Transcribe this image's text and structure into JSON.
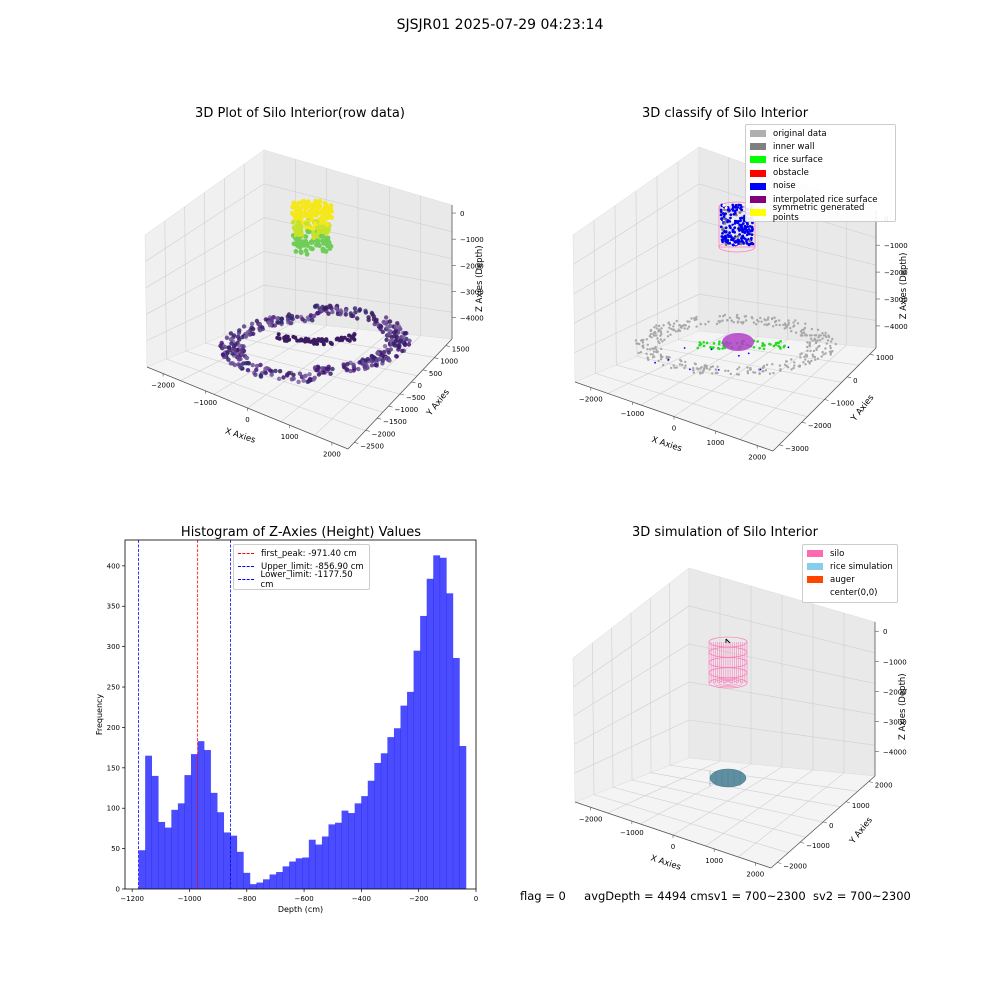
{
  "title": "SJSJR01 2025-07-29 04:23:14",
  "status": {
    "flag": "flag = 0",
    "avg_depth": "avgDepth = 4494 cm",
    "sv1": "sv1 = 700~2300",
    "sv2": "sv2 = 700~2300"
  },
  "plot_raw": {
    "title": "3D Plot of Silo Interior(row data)",
    "x_label": "X Axies",
    "y_label": "Y Axies",
    "z_label": "Z Axies (Depth)",
    "x_ticks": [
      "−2000",
      "−1000",
      "0",
      "1000",
      "2000"
    ],
    "y_ticks": [
      "1500",
      "1000",
      "500",
      "0",
      "−500",
      "−1000",
      "−1500",
      "−2000",
      "−2500"
    ],
    "z_ticks": [
      "0",
      "−1000",
      "−2000",
      "−3000",
      "−4000"
    ]
  },
  "plot_classify": {
    "title": "3D classify of Silo Interior",
    "x_label": "X Axies",
    "y_label": "Y Axies",
    "z_label": "Z Axies (Depth)",
    "x_ticks": [
      "−2000",
      "−1000",
      "0",
      "1000",
      "2000"
    ],
    "y_ticks": [
      "1000",
      "0",
      "−1000",
      "−2000",
      "−3000"
    ],
    "z_ticks": [
      "0",
      "−1000",
      "−2000",
      "−3000",
      "−4000"
    ],
    "legend": [
      {
        "label": "original data",
        "color": "#b0b0b0"
      },
      {
        "label": "inner wall",
        "color": "#808080"
      },
      {
        "label": "rice surface",
        "color": "#00ff00"
      },
      {
        "label": "obstacle",
        "color": "#ff0000"
      },
      {
        "label": "noise",
        "color": "#0000ff"
      },
      {
        "label": "interpolated rice surface",
        "color": "#800080"
      },
      {
        "label": "symmetric generated points",
        "color": "#ffff00"
      }
    ]
  },
  "plot_sim": {
    "title": "3D simulation of Silo Interior",
    "x_label": "X Axies",
    "y_label": "Y Axies",
    "z_label": "Z Axies (Depth)",
    "x_ticks": [
      "−2000",
      "−1000",
      "0",
      "1000",
      "2000"
    ],
    "y_ticks": [
      "2000",
      "1000",
      "0",
      "−1000",
      "−2000"
    ],
    "z_ticks": [
      "0",
      "−1000",
      "−2000",
      "−3000",
      "−4000"
    ],
    "legend": [
      {
        "label": "silo",
        "color": "#ff69b4"
      },
      {
        "label": "rice simulation",
        "color": "#87ceeb"
      },
      {
        "label": "auger",
        "color": "#ff4500"
      },
      {
        "label": "center(0,0)",
        "color": "#ffffff"
      }
    ]
  },
  "chart_data": {
    "type": "bar",
    "title": "Histogram of Z-Axies (Height) Values",
    "xlabel": "Depth (cm)",
    "ylabel": "Frequency",
    "xlim": [
      -1225,
      0
    ],
    "ylim": [
      0,
      432
    ],
    "x_ticks": [
      "−1200",
      "−1000",
      "−800",
      "−600",
      "−400",
      "−200",
      "0"
    ],
    "y_ticks": [
      "0",
      "50",
      "100",
      "150",
      "200",
      "250",
      "300",
      "350",
      "400"
    ],
    "bar_color": "#0000ff",
    "bin_start": -1177.5,
    "bin_width": 22.85,
    "values": [
      48,
      165,
      140,
      83,
      76,
      98,
      106,
      141,
      167,
      183,
      172,
      119,
      95,
      70,
      66,
      46,
      20,
      6,
      8,
      12,
      18,
      21,
      28,
      34,
      38,
      39,
      61,
      55,
      65,
      80,
      82,
      97,
      94,
      106,
      115,
      134,
      156,
      168,
      188,
      199,
      227,
      244,
      295,
      338,
      384,
      413,
      410,
      366,
      286,
      177
    ],
    "lines": [
      {
        "label": "first_peak: -971.40 cm",
        "x": -971.4,
        "color": "#ff0000"
      },
      {
        "label": "Upper_limit: -856.90 cm",
        "x": -856.9,
        "color": "#0000ff"
      },
      {
        "label": "Lower_limit: -1177.50 cm",
        "x": -1177.5,
        "color": "#0000ff"
      }
    ],
    "legend_position": "top-center"
  }
}
